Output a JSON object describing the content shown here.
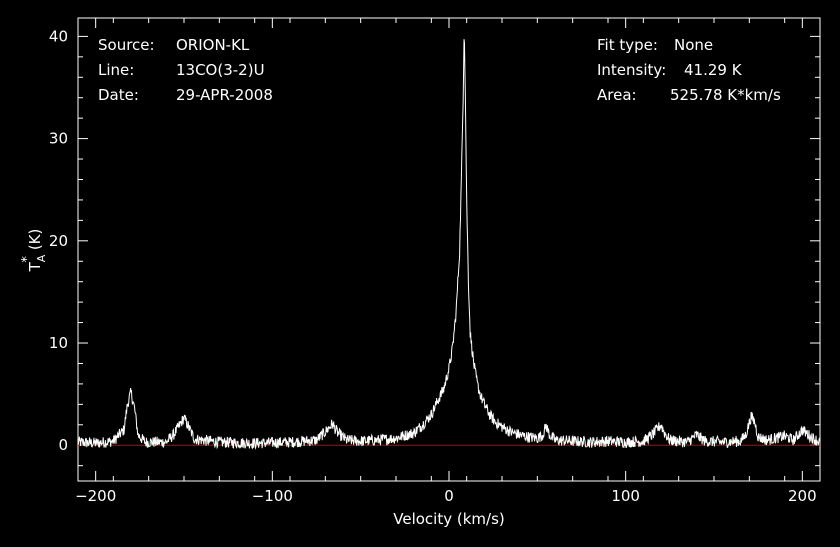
{
  "colors": {
    "background": "#000000",
    "foreground": "#ffffff",
    "baseline": "#cc0000"
  },
  "header_left": {
    "source_label": "Source:",
    "source_value": "ORION-KL",
    "line_label": "Line:",
    "line_value": "13CO(3-2)U",
    "date_label": "Date:",
    "date_value": "29-APR-2008"
  },
  "header_right": {
    "fit_label": "Fit type:",
    "fit_value": "None",
    "intensity_label": "Intensity:",
    "intensity_value": "41.29 K",
    "area_label": "Area:",
    "area_value": "525.78 K*km/s"
  },
  "chart_data": {
    "type": "line",
    "xlabel": "Velocity (km/s)",
    "ylabel_base": "T",
    "ylabel_sup": "*",
    "ylabel_sub": "A",
    "ylabel_unit": "(K)",
    "xlim": [
      -210,
      210
    ],
    "ylim": [
      -3.5,
      41.8
    ],
    "xticks": [
      -200,
      -100,
      0,
      100,
      200
    ],
    "xtick_labels": [
      "−200",
      "−100",
      "0",
      "100",
      "200"
    ],
    "yticks": [
      0,
      10,
      20,
      30,
      40
    ],
    "ytick_labels": [
      "0",
      "10",
      "20",
      "30",
      "40"
    ],
    "baseline_y": 0,
    "series": [
      {
        "x": [
          -210,
          -200,
          -190,
          -184,
          -182,
          -180,
          -178,
          -176,
          -172,
          -160,
          -156,
          -152,
          -150,
          -148,
          -144,
          -130,
          -110,
          -90,
          -75,
          -70,
          -66,
          -63,
          -58,
          -50,
          -40,
          -30,
          -20,
          -15,
          -10,
          -6,
          -3,
          0,
          2,
          4,
          6,
          7,
          8,
          8.6,
          9.2,
          10,
          11,
          12,
          14,
          16,
          18,
          20,
          23,
          26,
          30,
          35,
          40,
          45,
          50,
          53,
          55,
          57,
          60,
          70,
          80,
          90,
          100,
          110,
          115,
          118,
          120,
          122,
          125,
          135,
          140,
          145,
          155,
          165,
          168,
          171,
          173,
          175,
          180,
          190,
          195,
          200,
          205,
          210
        ],
        "y": [
          0.3,
          0.2,
          0.4,
          1.5,
          4.0,
          5.2,
          3.6,
          1.0,
          0.3,
          0.3,
          1.0,
          2.1,
          2.7,
          2.0,
          0.6,
          0.3,
          0.2,
          0.3,
          0.5,
          1.3,
          2.1,
          1.2,
          0.5,
          0.4,
          0.5,
          0.7,
          1.2,
          2.0,
          3.0,
          4.5,
          5.5,
          7.5,
          9.5,
          13,
          19,
          26,
          34,
          41.3,
          35,
          24,
          16,
          11,
          8,
          6,
          4.8,
          4.0,
          3.0,
          2.3,
          1.8,
          1.3,
          1.0,
          0.8,
          0.7,
          1.0,
          1.9,
          1.0,
          0.5,
          0.4,
          0.3,
          0.4,
          0.3,
          0.4,
          1.0,
          1.6,
          2.0,
          1.2,
          0.5,
          0.3,
          1.0,
          0.4,
          0.3,
          0.4,
          1.0,
          2.8,
          2.3,
          0.8,
          0.5,
          0.9,
          0.5,
          1.5,
          0.8,
          0.3
        ]
      }
    ]
  }
}
